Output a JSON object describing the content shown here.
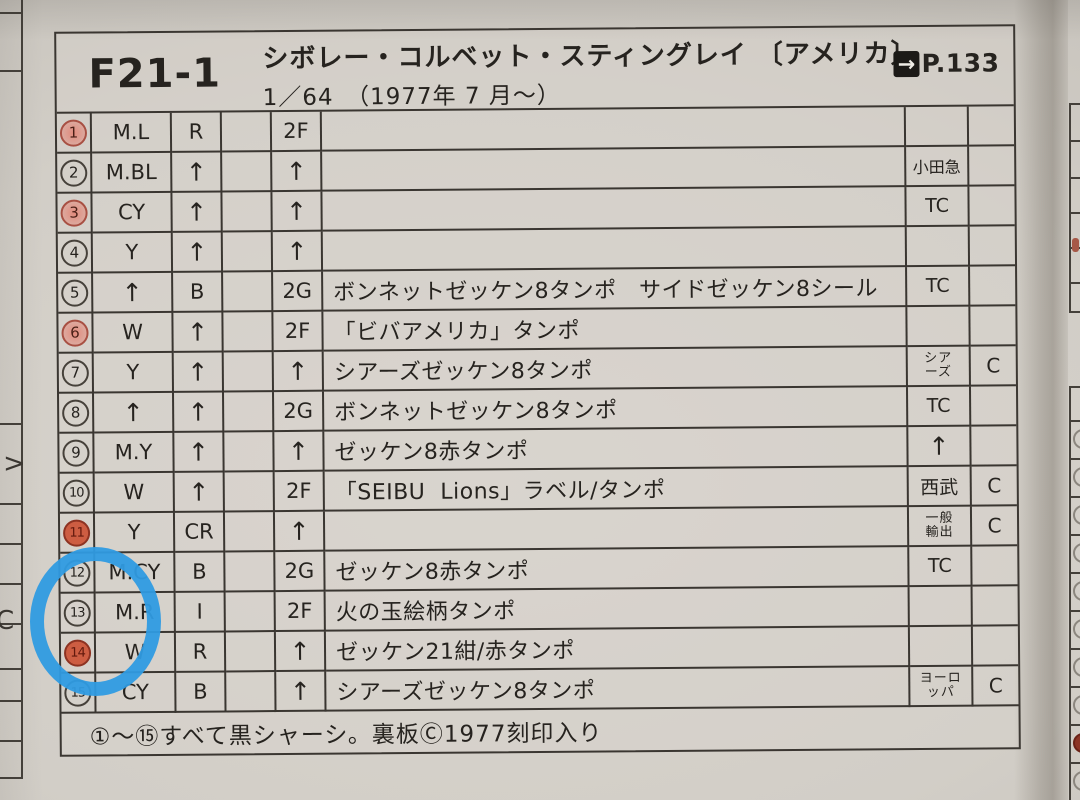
{
  "page": {
    "model_code": "F21-1",
    "title": "シボレー・コルベット・スティングレイ 〔アメリカ〕",
    "subtitle": "1／64　（1977年 7 月～）",
    "arrow_glyph": "→",
    "page_ref": "P.133"
  },
  "table": {
    "rows": [
      {
        "num": "1",
        "mark": "pink",
        "color1": "M.L",
        "color2": "R",
        "wheel": "2F",
        "desc": "",
        "dist": "",
        "cert": ""
      },
      {
        "num": "2",
        "mark": "none",
        "color1": "M.BL",
        "color2": "↑",
        "wheel": "↑",
        "desc": "",
        "dist": "小田急",
        "cert": ""
      },
      {
        "num": "3",
        "mark": "pink",
        "color1": "CY",
        "color2": "↑",
        "wheel": "↑",
        "desc": "",
        "dist": "TC",
        "cert": ""
      },
      {
        "num": "4",
        "mark": "none",
        "color1": "Y",
        "color2": "↑",
        "wheel": "↑",
        "desc": "",
        "dist": "",
        "cert": ""
      },
      {
        "num": "5",
        "mark": "none",
        "color1": "↑",
        "color2": "B",
        "wheel": "2G",
        "desc": "ボンネットゼッケン8タンポ　サイドゼッケン8シール",
        "dist": "TC",
        "cert": ""
      },
      {
        "num": "6",
        "mark": "pink",
        "color1": "W",
        "color2": "↑",
        "wheel": "2F",
        "desc": "「ビバアメリカ」タンポ",
        "dist": "",
        "cert": ""
      },
      {
        "num": "7",
        "mark": "none",
        "color1": "Y",
        "color2": "↑",
        "wheel": "↑",
        "desc": "シアーズゼッケン8タンポ",
        "dist": "シア\nーズ",
        "cert": "C"
      },
      {
        "num": "8",
        "mark": "none",
        "color1": "↑",
        "color2": "↑",
        "wheel": "2G",
        "desc": "ボンネットゼッケン8タンポ",
        "dist": "TC",
        "cert": ""
      },
      {
        "num": "9",
        "mark": "none",
        "color1": "M.Y",
        "color2": "↑",
        "wheel": "↑",
        "desc": "ゼッケン8赤タンポ",
        "dist": "↑",
        "cert": ""
      },
      {
        "num": "10",
        "mark": "none",
        "color1": "W",
        "color2": "↑",
        "wheel": "2F",
        "desc": "「SEIBU  Lions」ラベル/タンポ",
        "dist": "西武",
        "cert": "C"
      },
      {
        "num": "11",
        "mark": "red",
        "color1": "Y",
        "color2": "CR",
        "wheel": "↑",
        "desc": "",
        "dist": "一般\n輸出",
        "cert": "C"
      },
      {
        "num": "12",
        "mark": "none",
        "color1": "M.CY",
        "color2": "B",
        "wheel": "2G",
        "desc": "ゼッケン8赤タンポ",
        "dist": "TC",
        "cert": ""
      },
      {
        "num": "13",
        "mark": "none",
        "color1": "M.R",
        "color2": "I",
        "wheel": "2F",
        "desc": "火の玉絵柄タンポ",
        "dist": "",
        "cert": ""
      },
      {
        "num": "14",
        "mark": "red",
        "color1": "W",
        "color2": "R",
        "wheel": "↑",
        "desc": "ゼッケン21紺/赤タンポ",
        "dist": "",
        "cert": ""
      },
      {
        "num": "15",
        "mark": "none",
        "color1": "CY",
        "color2": "B",
        "wheel": "↑",
        "desc": "シアーズゼッケン8タンポ",
        "dist": "ヨーロ\nッパ",
        "cert": "C"
      }
    ],
    "note": "①～⑮すべて黒シャーシ。裏板Ⓒ1977刻印入り"
  },
  "annotation": {
    "type": "hand-drawn-circle",
    "color": "#2F9BE2"
  },
  "edge_fragments": {
    "left_chars": [
      ">",
      "C"
    ]
  },
  "colors": {
    "paper": "#D2CEC7",
    "line": "#3A3631",
    "red_mark": "#CC5236",
    "pink_mark": "#E67362",
    "annotation_blue": "#2F9BE2"
  }
}
